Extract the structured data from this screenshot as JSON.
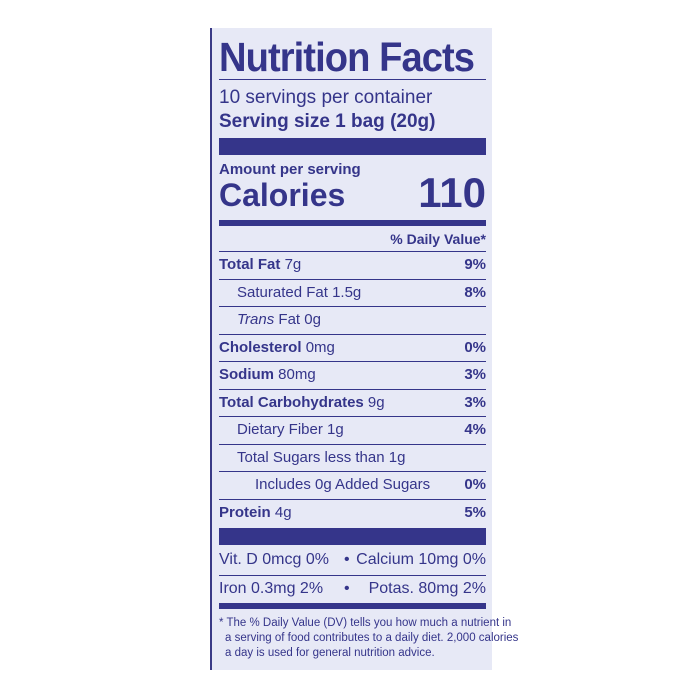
{
  "title": "Nutrition Facts",
  "servings_per_container": "10 servings per container",
  "serving_size": "Serving size 1 bag (20g)",
  "amount_per_serving": "Amount per serving",
  "calories_label": "Calories",
  "calories_value": "110",
  "daily_value_header": "% Daily Value*",
  "nutrients": [
    {
      "name": "Total Fat",
      "amount": "7g",
      "dv": "9%",
      "bold": true,
      "indent": 0
    },
    {
      "name": "Saturated Fat",
      "amount": "1.5g",
      "dv": "8%",
      "bold": false,
      "indent": 1
    },
    {
      "name": "Trans",
      "name2": "Fat",
      "amount": "0g",
      "dv": "",
      "bold": false,
      "indent": 1
    },
    {
      "name": "Cholesterol",
      "amount": "0mg",
      "dv": "0%",
      "bold": true,
      "indent": 0
    },
    {
      "name": "Sodium",
      "amount": "80mg",
      "dv": "3%",
      "bold": true,
      "indent": 0
    },
    {
      "name": "Total Carbohydrates",
      "amount": "9g",
      "dv": "3%",
      "bold": true,
      "indent": 0
    },
    {
      "name": "Dietary Fiber",
      "amount": "1g",
      "dv": "4%",
      "bold": false,
      "indent": 1
    },
    {
      "name": "Total Sugars less than 1g",
      "amount": "",
      "dv": "",
      "bold": false,
      "indent": 1
    },
    {
      "name": "Includes 0g Added Sugars",
      "amount": "",
      "dv": "0%",
      "bold": false,
      "indent": 2
    },
    {
      "name": "Protein",
      "amount": "4g",
      "dv": "5%",
      "bold": true,
      "indent": 0
    }
  ],
  "vitamins": [
    {
      "left": "Vit. D 0mcg 0%",
      "sep": "•",
      "right": "Calcium 10mg 0%"
    },
    {
      "left": "Iron 0.3mg 2%",
      "sep": "•",
      "right": "Potas. 80mg 2%"
    }
  ],
  "footnote": [
    "* The % Daily Value (DV) tells you how much a nutrient in",
    "a serving of food contributes to a daily diet. 2,000 calories",
    "a day is used for general nutrition advice."
  ]
}
